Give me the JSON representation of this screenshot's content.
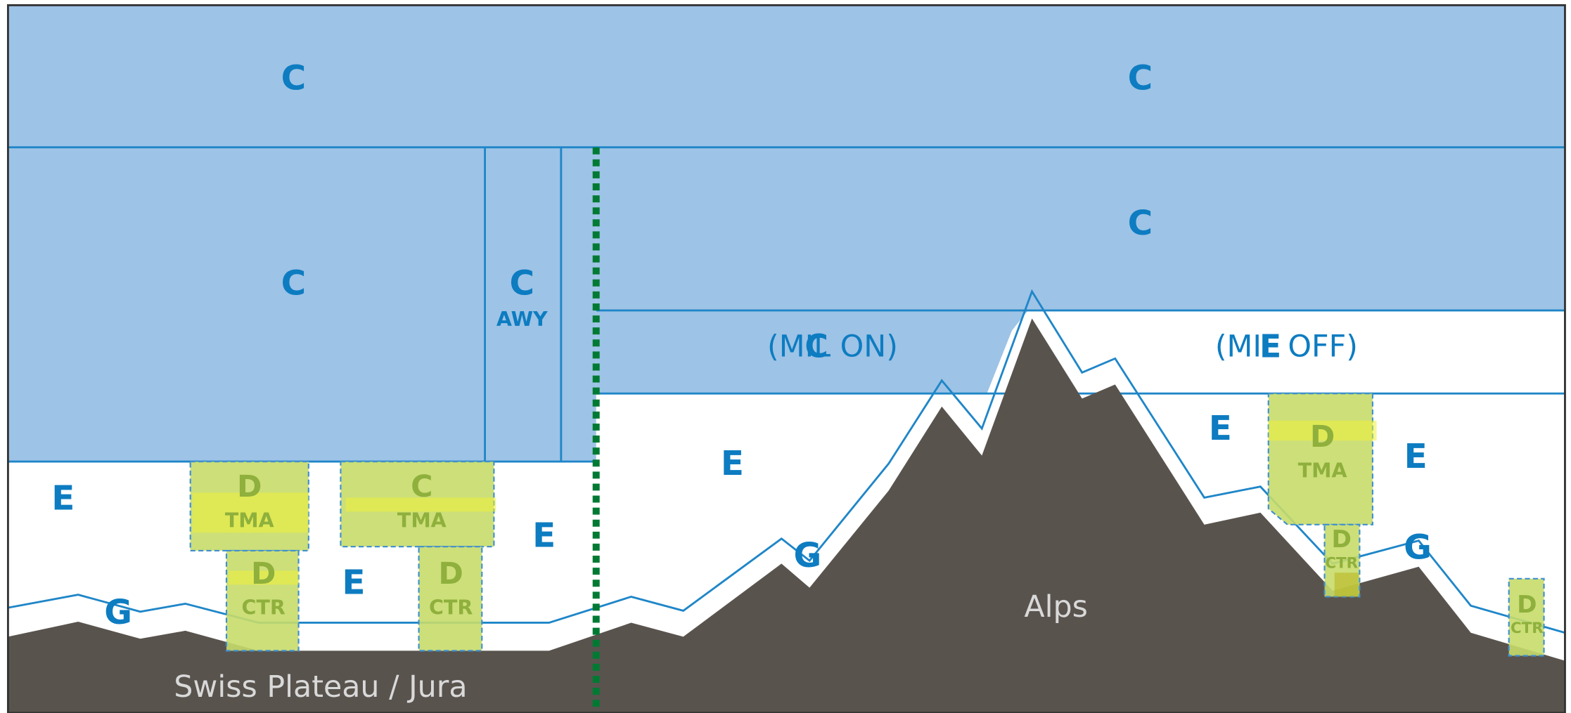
{
  "zones": [
    {
      "class": "C"
    },
    {
      "class": "C"
    },
    {
      "class": "C"
    },
    {
      "class": "C",
      "note": "AWY"
    },
    {
      "class": "C"
    },
    {
      "class": "C",
      "note": "(MIL ON)"
    },
    {
      "class": "E",
      "note": "(MIL OFF)"
    },
    {
      "class": "E"
    },
    {
      "class": "E"
    },
    {
      "class": "E"
    },
    {
      "class": "E"
    },
    {
      "class": "E"
    },
    {
      "class": "E"
    },
    {
      "class": "G"
    },
    {
      "class": "G"
    },
    {
      "class": "G"
    },
    {
      "class": "D",
      "note": "TMA"
    },
    {
      "class": "C",
      "note": "TMA"
    },
    {
      "class": "D",
      "note": "CTR"
    },
    {
      "class": "D",
      "note": "CTR"
    },
    {
      "class": "D",
      "note": "TMA"
    },
    {
      "class": "D",
      "note": "CTR"
    },
    {
      "class": "D",
      "note": "CTR"
    }
  ],
  "terrain": [
    "Swiss Plateau / Jura",
    "Alps"
  ]
}
